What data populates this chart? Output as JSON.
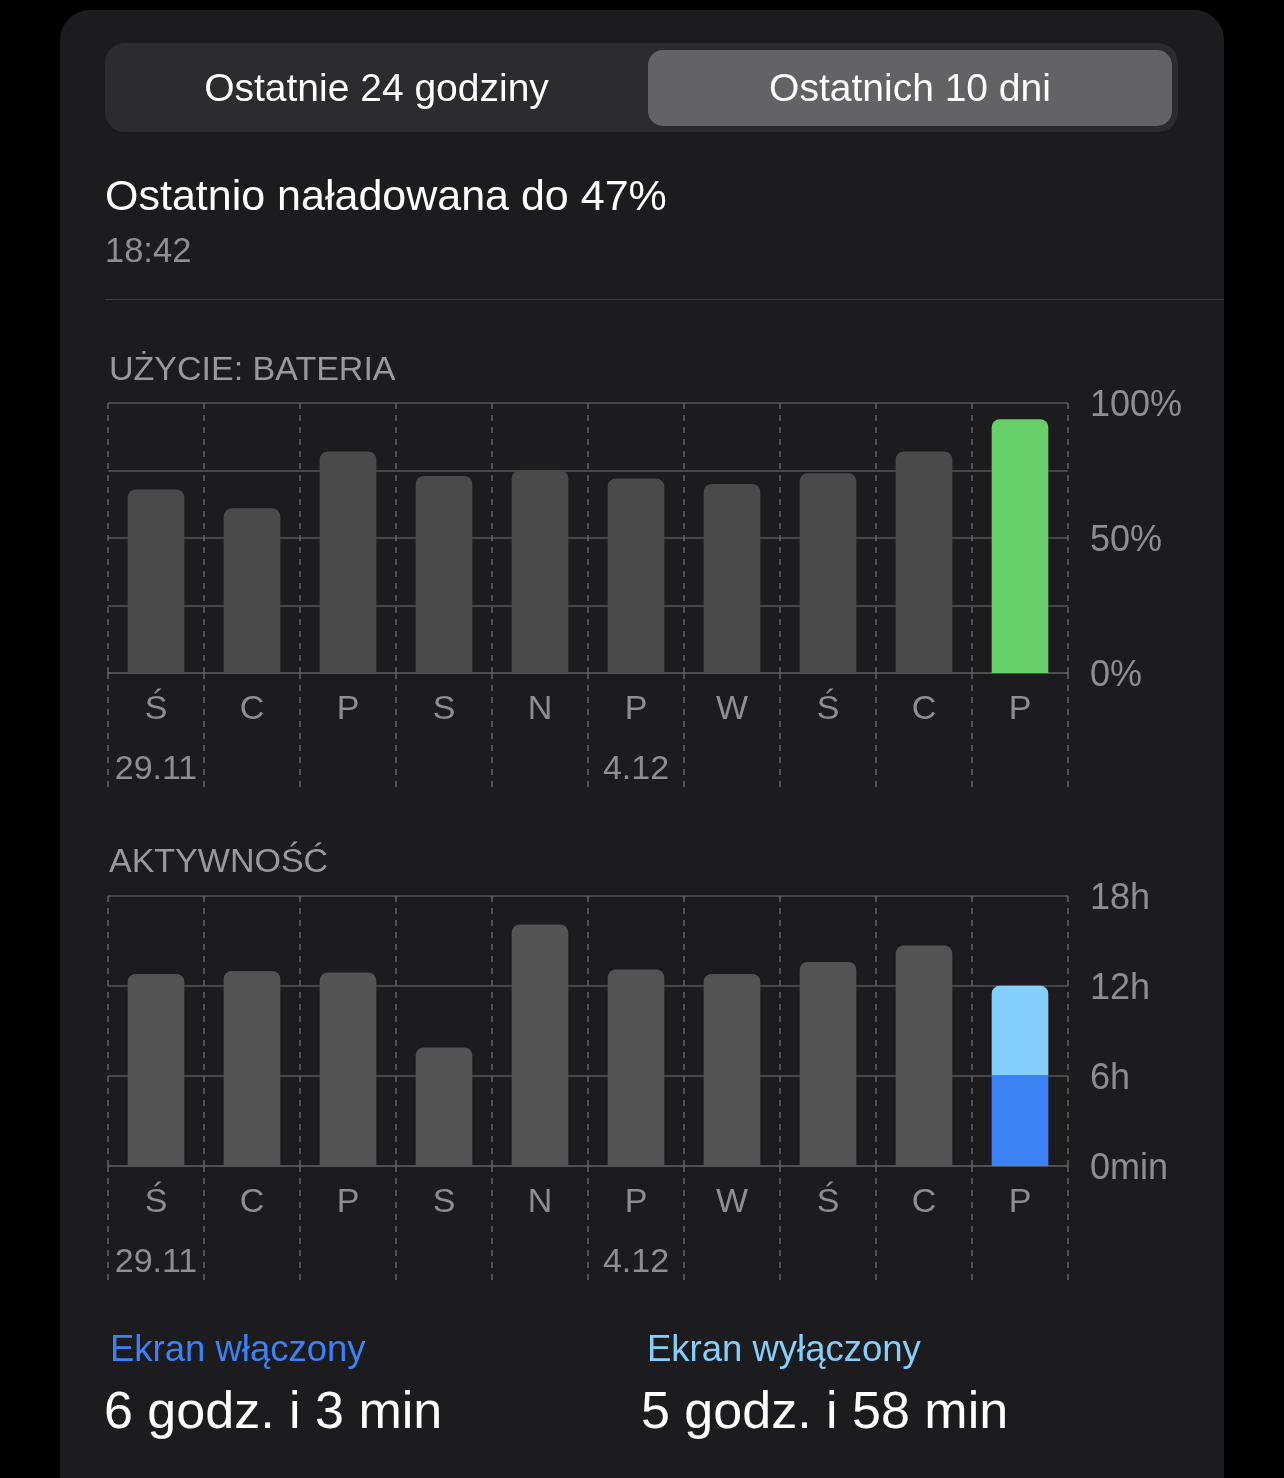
{
  "chart_data": [
    {
      "type": "bar",
      "title": "UŻYCIE: BATERIA",
      "categories": [
        "Ś\n29.11",
        "C",
        "P",
        "S",
        "N",
        "P\n4.12",
        "W",
        "Ś",
        "C",
        "P"
      ],
      "values": [
        68,
        61,
        82,
        73,
        75,
        72,
        70,
        74,
        82,
        94
      ],
      "colors": [
        "#4a4a4a",
        "#4a4a4a",
        "#4a4a4a",
        "#4a4a4a",
        "#4a4a4a",
        "#4a4a4a",
        "#4a4a4a",
        "#4a4a4a",
        "#4a4a4a",
        "#67cf6a"
      ],
      "ylim": [
        0,
        100
      ],
      "yticks": [
        {
          "value": 0,
          "label": "0%"
        },
        {
          "value": 25,
          "label": null
        },
        {
          "value": 50,
          "label": "50%"
        },
        {
          "value": 75,
          "label": null
        },
        {
          "value": 100,
          "label": "100%"
        }
      ],
      "grid": true,
      "annotations": [
        "Ostatnie 24 godziny",
        "Ostatnich 10 dni",
        "Ostatnio naładowana do 47%",
        "18:42"
      ]
    },
    {
      "type": "bar",
      "title": "AKTYWNOŚĆ",
      "categories": [
        "Ś\n29.11",
        "C",
        "P",
        "S",
        "N",
        "P\n4.12",
        "W",
        "Ś",
        "C",
        "P"
      ],
      "stacked": true,
      "series": [
        {
          "color": "#535353",
          "values": [
            12.8,
            13.0,
            12.9,
            7.9,
            16.1,
            13.1,
            12.8,
            13.6,
            14.7,
            null
          ]
        },
        {
          "name": "Ekran włączony",
          "color": "#3b82f6",
          "values": [
            null,
            null,
            null,
            null,
            null,
            null,
            null,
            null,
            null,
            6.05
          ]
        },
        {
          "name": "Ekran wyłączony",
          "color": "#84cffc",
          "values": [
            null,
            null,
            null,
            null,
            null,
            null,
            null,
            null,
            null,
            5.97
          ]
        }
      ],
      "ylim": [
        0,
        18
      ],
      "yticks": [
        {
          "value": 0,
          "label": "0min"
        },
        {
          "value": 6,
          "label": "6h"
        },
        {
          "value": 12,
          "label": "12h"
        },
        {
          "value": 18,
          "label": "18h"
        }
      ],
      "grid": true,
      "legend": "bottom",
      "annotations": [
        "6 godz. i 3 min",
        "5 godz. i 58 min"
      ]
    }
  ]
}
